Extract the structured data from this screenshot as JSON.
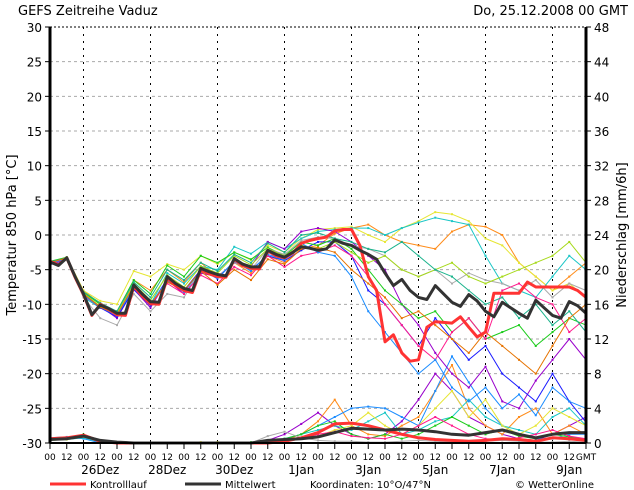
{
  "header": {
    "title": "GEFS Zeitreihe Vaduz",
    "run": "Do, 25.12.2008 00 GMT"
  },
  "legend": {
    "control": "Kontrolllauf",
    "mean": "Mittelwert",
    "coords": "Koordinaten: 10°O/47°N",
    "copyright": "© WetterOnline"
  },
  "chart_data": {
    "type": "line",
    "title": "GEFS Zeitreihe Vaduz",
    "ylabel": "Temperatur 850 hPa [°C]",
    "y2label": "Niederschlag [mm/6h]",
    "ylim": [
      -30,
      30
    ],
    "y2lim": [
      0,
      48
    ],
    "yticks": [
      "30",
      "25",
      "20",
      "15",
      "10",
      "5",
      "0",
      "-5",
      "-10",
      "-15",
      "-20",
      "-25",
      "-30"
    ],
    "y2ticks": [
      "48",
      "44",
      "40",
      "36",
      "32",
      "28",
      "24",
      "20",
      "16",
      "12",
      "8",
      "4",
      "0"
    ],
    "x_start": "25.12.2008 00 GMT",
    "x_end_hours": 384,
    "xtick_labels": [
      "00",
      "12",
      "00",
      "12",
      "00",
      "12",
      "00",
      "12",
      "00",
      "12",
      "00",
      "12",
      "00",
      "12",
      "00",
      "12",
      "00",
      "12",
      "00",
      "12",
      "00",
      "12",
      "00",
      "12",
      "00",
      "12",
      "00",
      "12",
      "00",
      "12",
      "00",
      "12",
      "GMT"
    ],
    "day_labels": [
      "26Dez",
      "28Dez",
      "30Dez",
      "1Jan",
      "3Jan",
      "5Jan",
      "7Jan",
      "9Jan"
    ],
    "grid": true,
    "colors": {
      "control": "#ff3333",
      "mean": "#333333"
    },
    "temperature": {
      "mean": {
        "name": "Mittelwert",
        "step_hours": 6,
        "values": [
          -3.9,
          -4.4,
          -3.3,
          -6,
          -8.5,
          -11.5,
          -10.1,
          -10.6,
          -11.3,
          -11.3,
          -7.2,
          -8.5,
          -9.6,
          -9.7,
          -6,
          -7,
          -7.7,
          -8,
          -4.8,
          -5.3,
          -5.7,
          -5.9,
          -3.4,
          -4.2,
          -4.6,
          -4.6,
          -2.2,
          -2.8,
          -3.2,
          -2.5,
          -1.7,
          -1.9,
          -2.2,
          -2,
          -0.7,
          -1.2,
          -1.5,
          -2.2,
          -2.8,
          -3.5,
          -5.5,
          -7.3,
          -6.4,
          -8,
          -9,
          -9.3,
          -7.3,
          -8.5,
          -9.7,
          -10.3,
          -8.6,
          -9.5,
          -11,
          -11.8,
          -9.7,
          -10.5,
          -11.3,
          -12,
          -9.4,
          -10.5,
          -11.6,
          -12,
          -9.6,
          -10.2,
          -11.3
        ]
      },
      "control": {
        "name": "Kontrolllauf",
        "step_hours": 6,
        "values": [
          -3.8,
          -4.3,
          -3.3,
          -6.1,
          -8.6,
          -11.6,
          -10,
          -10.7,
          -11.5,
          -11.6,
          -7.4,
          -8.8,
          -9.9,
          -10,
          -6.2,
          -7.3,
          -8,
          -8.3,
          -5,
          -5.6,
          -6,
          -6.1,
          -3.5,
          -4.4,
          -4.8,
          -4.9,
          -2.3,
          -3,
          -3.3,
          -2.6,
          -1.2,
          -0.8,
          -0.5,
          -0.3,
          0.6,
          0.8,
          0.8,
          -1.5,
          -6,
          -8,
          -15.4,
          -14.4,
          -17,
          -18.2,
          -18,
          -13.3,
          -12.5,
          -12.6,
          -12.7,
          -11.8,
          -13.3,
          -14.7,
          -14,
          -8.4,
          -8.4,
          -8.4,
          -8.4,
          -6.8,
          -7.5,
          -7.5,
          -7.5,
          -7.5,
          -7.5,
          -8,
          -9
        ]
      },
      "members": [
        {
          "color": "#ff8c1a",
          "step_hours": 12,
          "values": [
            -4,
            -3.4,
            -8,
            -10,
            -11,
            -6.5,
            -8,
            -5,
            -6.8,
            -4,
            -6,
            -4,
            -5.5,
            -3,
            -4,
            -2,
            -1.5,
            0.2,
            1,
            1.5,
            0,
            -1,
            -1.5,
            -2,
            0.5,
            1.5,
            1.2,
            0,
            -4,
            -6,
            -8,
            -6,
            -4
          ]
        },
        {
          "color": "#e6e633",
          "step_hours": 12,
          "values": [
            -4,
            -3.2,
            -8,
            -9.5,
            -10,
            -5.2,
            -6,
            -4.2,
            -5,
            -3,
            -4.2,
            -2.5,
            -3.6,
            -1.5,
            -2.5,
            -0.5,
            0.8,
            1,
            1.2,
            0,
            -1,
            1,
            2,
            3.3,
            3,
            2,
            -0.5,
            -1.5,
            -4,
            -6,
            -8,
            -7,
            -9
          ]
        },
        {
          "color": "#1ac6c6",
          "step_hours": 12,
          "values": [
            -4.2,
            -3.3,
            -9,
            -10.5,
            -11.5,
            -7.5,
            -10,
            -5.5,
            -7,
            -4.5,
            -5,
            -1.7,
            -2.7,
            -1,
            -2,
            -0.5,
            0.5,
            0.8,
            1,
            1,
            0,
            1,
            1.8,
            2.5,
            2,
            1.5,
            -3,
            -7,
            -8,
            -9,
            -6,
            -3,
            -5
          ]
        },
        {
          "color": "#9900cc",
          "step_hours": 12,
          "values": [
            -4,
            -3.3,
            -8.8,
            -10.3,
            -12,
            -7.8,
            -10.5,
            -6.5,
            -8.5,
            -5.5,
            -6,
            -4,
            -4.5,
            -1,
            -2,
            0.5,
            1,
            0.5,
            -1,
            -3,
            -5,
            -10,
            -13,
            -17,
            -20,
            -22,
            -19,
            -24,
            -25,
            -21,
            -18,
            -15,
            -18
          ]
        },
        {
          "color": "#1a1aff",
          "step_hours": 12,
          "values": [
            -4.3,
            -3.5,
            -8.6,
            -10.5,
            -11.8,
            -7.9,
            -10.2,
            -6.3,
            -8,
            -5,
            -6.3,
            -3.8,
            -5,
            -3,
            -3.7,
            -2.2,
            -1,
            -1,
            -3,
            -8,
            -10,
            -13,
            -16,
            -12,
            -15,
            -18,
            -16,
            -20,
            -22,
            -24,
            -20,
            -24,
            -27
          ]
        },
        {
          "color": "#1acc1a",
          "step_hours": 12,
          "values": [
            -3.8,
            -3.2,
            -8.3,
            -10,
            -11,
            -6.5,
            -8.5,
            -4.4,
            -6,
            -3,
            -4,
            -2.5,
            -3.5,
            -1.8,
            -3,
            -1,
            -1.5,
            -0.5,
            -2,
            -5,
            -8,
            -10,
            -12,
            -11,
            -14,
            -12,
            -15,
            -14,
            -13,
            -16,
            -14,
            -12,
            -13
          ]
        },
        {
          "color": "#aaaaaa",
          "step_hours": 12,
          "values": [
            -4,
            -3.3,
            -9,
            -12,
            -13,
            -8.5,
            -11,
            -8.5,
            -9,
            -5,
            -6,
            -4,
            -5,
            -2,
            -2.8,
            -0.8,
            -0.3,
            -0.5,
            -1.5,
            -2,
            -3,
            -5,
            -6,
            -5,
            -7,
            -5.5,
            -6.5,
            -7,
            -8,
            -6.5,
            -9,
            -7,
            -8
          ]
        },
        {
          "color": "#ff1a8c",
          "step_hours": 12,
          "values": [
            -4.2,
            -3.4,
            -8.8,
            -10.4,
            -11.6,
            -7.5,
            -10,
            -7,
            -8.5,
            -5.8,
            -7,
            -4.6,
            -5.8,
            -3,
            -4.6,
            -3,
            -2.5,
            -1.5,
            -3,
            -6,
            -10,
            -13,
            -16,
            -18,
            -14,
            -12,
            -15,
            -8,
            -7,
            -9,
            -10,
            -14,
            -12
          ]
        },
        {
          "color": "#a6d91a",
          "step_hours": 12,
          "values": [
            -4,
            -3.3,
            -8.4,
            -10.3,
            -11.2,
            -7,
            -9.4,
            -5.8,
            -7.5,
            -4.5,
            -5.5,
            -3,
            -4.3,
            -2,
            -3,
            -1.5,
            -2,
            -1,
            -2.5,
            -4,
            -3,
            -5,
            -6,
            -5,
            -4,
            -6,
            -7,
            -6,
            -5,
            -4,
            -3,
            -1,
            -4
          ]
        },
        {
          "color": "#1a8cff",
          "step_hours": 12,
          "values": [
            -4.1,
            -3.4,
            -8.7,
            -10.4,
            -11.6,
            -7.6,
            -10,
            -6.6,
            -8.2,
            -5.2,
            -6.2,
            -3.8,
            -5.2,
            -2.8,
            -3.6,
            -1.2,
            -2.5,
            -3,
            -6,
            -11,
            -14,
            -17,
            -20,
            -18,
            -22,
            -24,
            -22,
            -25,
            -23,
            -26,
            -22,
            -24,
            -25
          ]
        },
        {
          "color": "#1ab38c",
          "step_hours": 12,
          "values": [
            -3.9,
            -3.3,
            -8.2,
            -9.8,
            -11,
            -6.8,
            -9,
            -5,
            -6.5,
            -4,
            -5.2,
            -2.8,
            -4,
            -1.2,
            -2.5,
            0,
            0.3,
            -0.5,
            -1,
            -2,
            -2.5,
            -1,
            -3,
            -5,
            -6,
            -8,
            -10,
            -9,
            -12,
            -10,
            -13,
            -11,
            -14
          ]
        },
        {
          "color": "#e67300",
          "step_hours": 12,
          "values": [
            -4,
            -3.3,
            -8.5,
            -10.4,
            -11.5,
            -7.3,
            -10,
            -6.8,
            -8,
            -5.2,
            -7.2,
            -5,
            -6.5,
            -3.5,
            -4.2,
            -2,
            -1.8,
            -2.5,
            -5,
            -7,
            -9,
            -12,
            -11,
            -13,
            -15,
            -17,
            -14,
            -16,
            -18,
            -20,
            -16,
            -12,
            -10
          ]
        }
      ]
    },
    "precipitation": {
      "mean": {
        "name": "Mittelwert",
        "step_hours": 12,
        "values": [
          0.4,
          0.5,
          0.8,
          0.3,
          0.1,
          0,
          0,
          0,
          0,
          0,
          0,
          0,
          0,
          0.3,
          0.4,
          0.5,
          0.7,
          1.2,
          1.7,
          1.6,
          1.5,
          1.6,
          1.5,
          1.3,
          1.0,
          0.9,
          1.2,
          1.5,
          1.0,
          0.6,
          1.0,
          1.2,
          1.2
        ]
      },
      "control": {
        "name": "Kontrolllauf",
        "step_hours": 12,
        "values": [
          0.5,
          0.6,
          0.9,
          0.2,
          0,
          0,
          0,
          0,
          0,
          0,
          0,
          0,
          0,
          0,
          0.2,
          0.6,
          1.2,
          2.2,
          2.3,
          2,
          1.5,
          1,
          0.6,
          0.4,
          0.3,
          0.2,
          0.3,
          0.5,
          0.4,
          0.2,
          0.6,
          0.5,
          0.3
        ]
      },
      "members": [
        {
          "color": "#9900cc",
          "step_hours": 12,
          "values": [
            0,
            0,
            0,
            0,
            0,
            0,
            0,
            0,
            0,
            0,
            0,
            0,
            0,
            0.3,
            1,
            2.2,
            3.5,
            2,
            1,
            0.5,
            1,
            2.5,
            5,
            8,
            6,
            3,
            2,
            1,
            0.5,
            0.3,
            1,
            2,
            3
          ]
        },
        {
          "color": "#ff8c1a",
          "step_hours": 12,
          "values": [
            0,
            0,
            0,
            0,
            0,
            0,
            0,
            0,
            0,
            0,
            0,
            0,
            0,
            0,
            0.3,
            1,
            2.5,
            5,
            2,
            1,
            0.8,
            2,
            3,
            6,
            9,
            4,
            2,
            1,
            3,
            4,
            1,
            2,
            1
          ]
        },
        {
          "color": "#1a8cff",
          "step_hours": 12,
          "values": [
            0.6,
            0.7,
            0.5,
            0,
            0,
            0,
            0,
            0,
            0,
            0,
            0,
            0,
            0,
            0.1,
            0.5,
            1,
            2,
            3,
            4,
            4.2,
            4,
            3,
            2,
            6,
            10,
            7,
            4,
            2,
            1,
            0.5,
            0.5,
            1,
            1
          ]
        },
        {
          "color": "#1ac6c6",
          "step_hours": 12,
          "values": [
            0.3,
            0.4,
            0.6,
            0.1,
            0,
            0,
            0,
            0,
            0,
            0,
            0,
            0,
            0,
            0.2,
            0.5,
            1,
            1.5,
            2,
            1.5,
            2.5,
            3.5,
            1,
            1.5,
            2.5,
            3,
            5,
            3,
            2,
            1.5,
            1,
            3,
            4,
            2
          ]
        },
        {
          "color": "#e6e633",
          "step_hours": 12,
          "values": [
            0.3,
            0.4,
            0.7,
            0.2,
            0,
            0,
            0,
            0,
            0,
            0.1,
            0.1,
            0,
            0,
            0,
            0.2,
            0.5,
            0.8,
            1.5,
            2,
            3.5,
            2,
            1,
            2,
            4,
            6,
            3,
            5,
            2,
            1,
            2,
            4,
            3,
            2
          ]
        },
        {
          "color": "#1acc1a",
          "step_hours": 12,
          "values": [
            0.4,
            0.5,
            1,
            0.3,
            0,
            0,
            0,
            0,
            0,
            0,
            0,
            0,
            0.1,
            0.2,
            0.5,
            1,
            2,
            2.5,
            1,
            0.5,
            1,
            0.5,
            1,
            2,
            3,
            2,
            1,
            1.5,
            0.8,
            0.5,
            1,
            0.7,
            0.4
          ]
        },
        {
          "color": "#ff1a8c",
          "step_hours": 12,
          "values": [
            0,
            0,
            0,
            0,
            0,
            0,
            0,
            0,
            0,
            0,
            0,
            0,
            0,
            0,
            0.2,
            0.5,
            1,
            1.3,
            0.8,
            0.6,
            0.5,
            1,
            2,
            3,
            2,
            1,
            0.5,
            0.4,
            0.6,
            1,
            1.5,
            0.8,
            0.5
          ]
        },
        {
          "color": "#aaaaaa",
          "step_hours": 12,
          "values": [
            0,
            0,
            0,
            0,
            0,
            0,
            0,
            0,
            0,
            0,
            0,
            0,
            0,
            0.8,
            1.3,
            0.6,
            0.3,
            0.2,
            0.2,
            0.1,
            0.1,
            0.2,
            0.3,
            0.2,
            0.1,
            0.1,
            0.2,
            0.3,
            0.2,
            0.1,
            0.1,
            0.2,
            0.1
          ]
        }
      ]
    }
  }
}
